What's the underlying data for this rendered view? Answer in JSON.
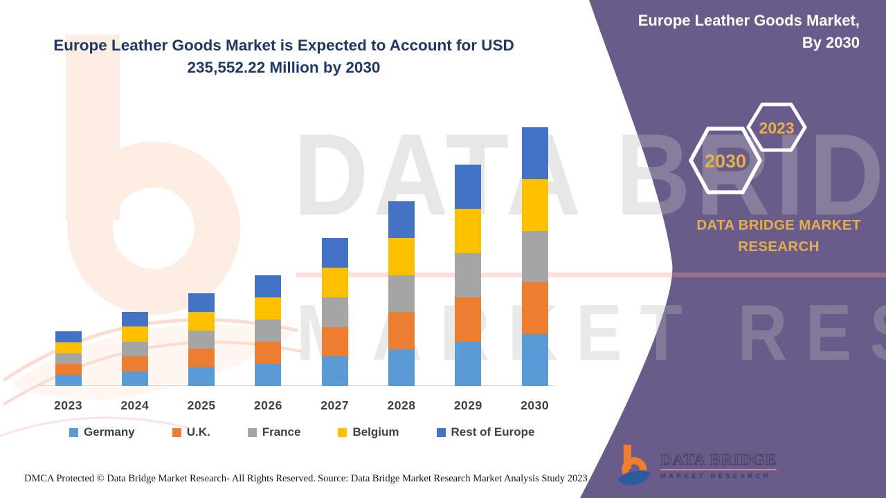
{
  "header": {
    "title_line1": "Europe Leather Goods Market is Expected to Account for USD",
    "title_line2": "235,552.22 Million by 2030"
  },
  "side_panel": {
    "title_line1": "Europe Leather Goods Market,",
    "title_line2": "By 2030",
    "hexagons": {
      "front": "2030",
      "back": "2023"
    },
    "brand": "DATA BRIDGE MARKET RESEARCH",
    "background_color": "#695c8b",
    "accent_gold": "#e5ae4d"
  },
  "chart_data": {
    "type": "bar",
    "stacked": true,
    "title": "Europe Leather Goods Market, By 2030",
    "unit": "USD Million",
    "categories": [
      "2023",
      "2024",
      "2025",
      "2026",
      "2027",
      "2028",
      "2029",
      "2030"
    ],
    "series": [
      {
        "name": "Germany",
        "color": "#5B9BD5",
        "values": [
          9950,
          13480,
          16880,
          20220,
          26900,
          33700,
          40310,
          47110.4
        ]
      },
      {
        "name": "U.K.",
        "color": "#ED7D31",
        "values": [
          9950,
          13480,
          16880,
          20220,
          26900,
          33700,
          40310,
          47110.4
        ]
      },
      {
        "name": "France",
        "color": "#A5A5A5",
        "values": [
          9950,
          13480,
          16880,
          20220,
          26900,
          33700,
          40310,
          47110.4
        ]
      },
      {
        "name": "Belgium",
        "color": "#FFC000",
        "values": [
          9950,
          13480,
          16880,
          20220,
          26900,
          33700,
          40310,
          47110.4
        ]
      },
      {
        "name": "Rest of Europe",
        "color": "#4472C4",
        "values": [
          9950,
          13480,
          16880,
          20220,
          26900,
          33700,
          40310,
          47110.4
        ]
      }
    ],
    "totals": [
      49750,
      67400,
      84400,
      101100,
      134500,
      168500,
      201550,
      235552.22
    ],
    "annotation": "USD 235,552.22 Million by 2030",
    "xlabel": "",
    "ylabel": "",
    "ylim": [
      0,
      235552.22
    ],
    "y_axis_visible": false,
    "gridlines": false,
    "legend_position": "bottom"
  },
  "footer": {
    "dmca": "DMCA Protected © Data Bridge Market Research- All Rights Reserved.",
    "source": "Source: Data Bridge Market Research Market Analysis Study 2023"
  },
  "logo": {
    "brand": "DATA BRIDGE",
    "sub": "MARKET RESEARCH"
  },
  "watermark": {
    "line1": "DATA BRIDGE",
    "line2": "MARKET RESEARCH"
  }
}
